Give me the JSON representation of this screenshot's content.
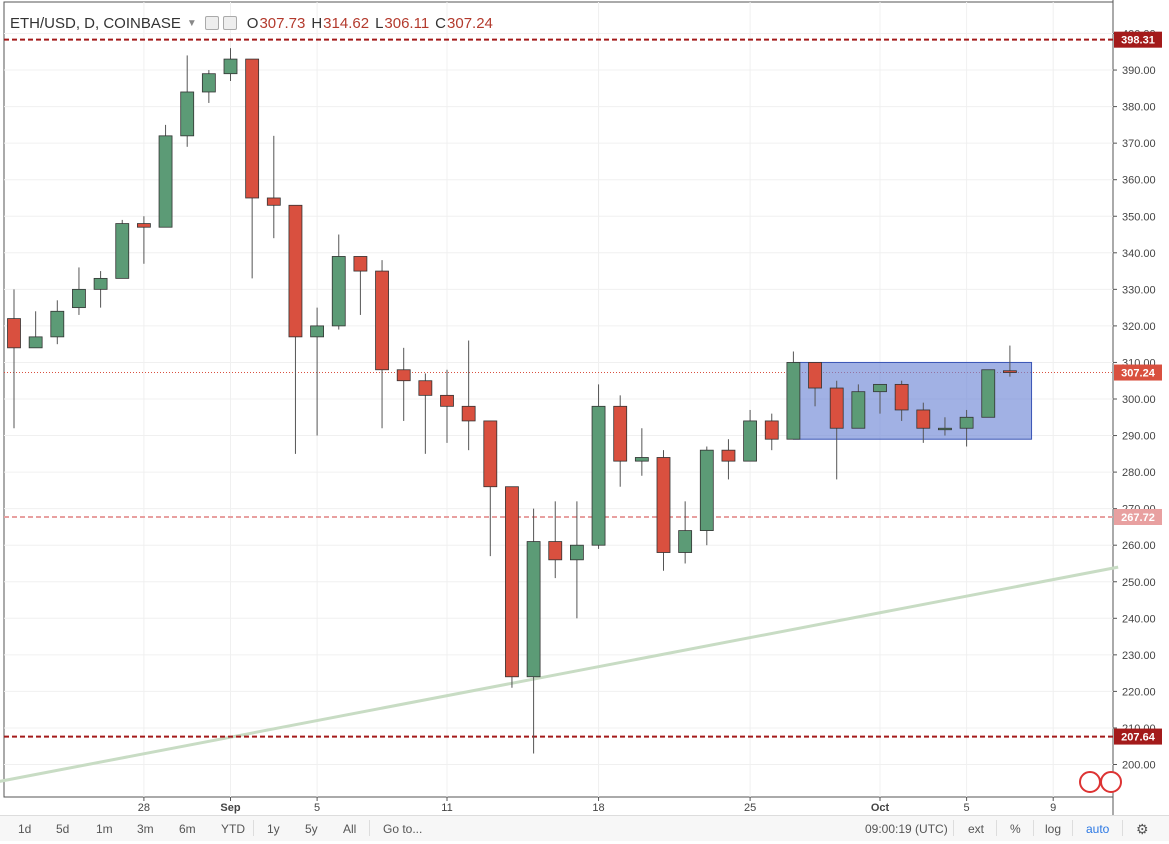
{
  "header": {
    "symbol": "ETH/USD, D, COINBASE",
    "o_label": "O",
    "o_value": "307.73",
    "h_label": "H",
    "h_value": "314.62",
    "l_label": "L",
    "l_value": "306.11",
    "c_label": "C",
    "c_value": "307.24"
  },
  "colors": {
    "up": "#5c9b76",
    "down": "#d9503f",
    "line_red": "#a31a1a",
    "trend": "#c8dcc4",
    "box": "#6f87d6"
  },
  "chart_data": {
    "type": "candlestick",
    "y_ticks": [
      200,
      210,
      220,
      230,
      240,
      250,
      260,
      270,
      280,
      290,
      300,
      310,
      320,
      330,
      340,
      350,
      360,
      370,
      380,
      390,
      400
    ],
    "y_tick_labels": [
      "200.00",
      "210.00",
      "220.00",
      "230.00",
      "240.00",
      "250.00",
      "260.00",
      "270.00",
      "280.00",
      "290.00",
      "300.00",
      "310.00",
      "320.00",
      "330.00",
      "340.00",
      "350.00",
      "360.00",
      "370.00",
      "380.00",
      "390.00",
      "400.00"
    ],
    "x_tick_labels": [
      {
        "label": "28",
        "date": "2017-08-28"
      },
      {
        "label": "Sep",
        "date": "2017-09-01"
      },
      {
        "label": "5",
        "date": "2017-09-05"
      },
      {
        "label": "11",
        "date": "2017-09-11"
      },
      {
        "label": "18",
        "date": "2017-09-18"
      },
      {
        "label": "25",
        "date": "2017-09-25"
      },
      {
        "label": "Oct",
        "date": "2017-10-01"
      },
      {
        "label": "5",
        "date": "2017-10-05"
      },
      {
        "label": "9",
        "date": "2017-10-09"
      }
    ],
    "candles": [
      {
        "date": "2017-08-22",
        "o": 322,
        "h": 330,
        "l": 292,
        "c": 314
      },
      {
        "date": "2017-08-23",
        "o": 314,
        "h": 324,
        "l": 314,
        "c": 317
      },
      {
        "date": "2017-08-24",
        "o": 317,
        "h": 327,
        "l": 315,
        "c": 324
      },
      {
        "date": "2017-08-25",
        "o": 325,
        "h": 336,
        "l": 323,
        "c": 330
      },
      {
        "date": "2017-08-26",
        "o": 330,
        "h": 335,
        "l": 325,
        "c": 333
      },
      {
        "date": "2017-08-27",
        "o": 333,
        "h": 349,
        "l": 333,
        "c": 348
      },
      {
        "date": "2017-08-28",
        "o": 348,
        "h": 350,
        "l": 337,
        "c": 347
      },
      {
        "date": "2017-08-29",
        "o": 347,
        "h": 375,
        "l": 347,
        "c": 372
      },
      {
        "date": "2017-08-30",
        "o": 372,
        "h": 394,
        "l": 369,
        "c": 384
      },
      {
        "date": "2017-08-31",
        "o": 384,
        "h": 390,
        "l": 381,
        "c": 389
      },
      {
        "date": "2017-09-01",
        "o": 389,
        "h": 396,
        "l": 387,
        "c": 393
      },
      {
        "date": "2017-09-02",
        "o": 393,
        "h": 393,
        "l": 333,
        "c": 355
      },
      {
        "date": "2017-09-03",
        "o": 355,
        "h": 372,
        "l": 344,
        "c": 353
      },
      {
        "date": "2017-09-04",
        "o": 353,
        "h": 353,
        "l": 285,
        "c": 317
      },
      {
        "date": "2017-09-05",
        "o": 317,
        "h": 325,
        "l": 290,
        "c": 320
      },
      {
        "date": "2017-09-06",
        "o": 320,
        "h": 345,
        "l": 319,
        "c": 339
      },
      {
        "date": "2017-09-07",
        "o": 339,
        "h": 339,
        "l": 323,
        "c": 335
      },
      {
        "date": "2017-09-08",
        "o": 335,
        "h": 338,
        "l": 292,
        "c": 308
      },
      {
        "date": "2017-09-09",
        "o": 308,
        "h": 314,
        "l": 294,
        "c": 305
      },
      {
        "date": "2017-09-10",
        "o": 305,
        "h": 307,
        "l": 285,
        "c": 301
      },
      {
        "date": "2017-09-11",
        "o": 301,
        "h": 308,
        "l": 288,
        "c": 298
      },
      {
        "date": "2017-09-12",
        "o": 298,
        "h": 316,
        "l": 286,
        "c": 294
      },
      {
        "date": "2017-09-13",
        "o": 294,
        "h": 294,
        "l": 257,
        "c": 276
      },
      {
        "date": "2017-09-14",
        "o": 276,
        "h": 276,
        "l": 221,
        "c": 224
      },
      {
        "date": "2017-09-15",
        "o": 224,
        "h": 270,
        "l": 203,
        "c": 261
      },
      {
        "date": "2017-09-16",
        "o": 261,
        "h": 272,
        "l": 251,
        "c": 256
      },
      {
        "date": "2017-09-17",
        "o": 256,
        "h": 272,
        "l": 240,
        "c": 260
      },
      {
        "date": "2017-09-18",
        "o": 260,
        "h": 304,
        "l": 259,
        "c": 298
      },
      {
        "date": "2017-09-19",
        "o": 298,
        "h": 301,
        "l": 276,
        "c": 283
      },
      {
        "date": "2017-09-20",
        "o": 283,
        "h": 292,
        "l": 279,
        "c": 284
      },
      {
        "date": "2017-09-21",
        "o": 284,
        "h": 286,
        "l": 253,
        "c": 258
      },
      {
        "date": "2017-09-22",
        "o": 258,
        "h": 272,
        "l": 255,
        "c": 264
      },
      {
        "date": "2017-09-23",
        "o": 264,
        "h": 287,
        "l": 260,
        "c": 286
      },
      {
        "date": "2017-09-24",
        "o": 286,
        "h": 289,
        "l": 278,
        "c": 283
      },
      {
        "date": "2017-09-25",
        "o": 283,
        "h": 297,
        "l": 283,
        "c": 294
      },
      {
        "date": "2017-09-26",
        "o": 294,
        "h": 296,
        "l": 286,
        "c": 289
      },
      {
        "date": "2017-09-27",
        "o": 289,
        "h": 313,
        "l": 289,
        "c": 310
      },
      {
        "date": "2017-09-28",
        "o": 310,
        "h": 310,
        "l": 298,
        "c": 303
      },
      {
        "date": "2017-09-29",
        "o": 303,
        "h": 305,
        "l": 278,
        "c": 292
      },
      {
        "date": "2017-09-30",
        "o": 292,
        "h": 304,
        "l": 292,
        "c": 302
      },
      {
        "date": "2017-10-01",
        "o": 302,
        "h": 304,
        "l": 296,
        "c": 304
      },
      {
        "date": "2017-10-02",
        "o": 304,
        "h": 305,
        "l": 294,
        "c": 297
      },
      {
        "date": "2017-10-03",
        "o": 297,
        "h": 299,
        "l": 288,
        "c": 292
      },
      {
        "date": "2017-10-04",
        "o": 292,
        "h": 295,
        "l": 290,
        "c": 292
      },
      {
        "date": "2017-10-05",
        "o": 292,
        "h": 297,
        "l": 287,
        "c": 295
      },
      {
        "date": "2017-10-06",
        "o": 295,
        "h": 308,
        "l": 295,
        "c": 308
      },
      {
        "date": "2017-10-07",
        "o": 307.73,
        "h": 314.62,
        "l": 306.11,
        "c": 307.24
      }
    ],
    "horizontal_lines": [
      {
        "value": 398.31,
        "label": "398.31",
        "style": "dashed",
        "color": "#a31a1a"
      },
      {
        "value": 307.24,
        "label": "307.24",
        "style": "dotted",
        "color": "#d9503f"
      },
      {
        "value": 267.72,
        "label": "267.72",
        "style": "dashed",
        "color": "#e8a0a0"
      },
      {
        "value": 207.64,
        "label": "207.64",
        "style": "dashed",
        "color": "#a31a1a"
      }
    ],
    "trendline": {
      "from": {
        "date": "2017-08-21",
        "value": 195
      },
      "to": {
        "date": "2017-10-12",
        "value": 254
      }
    },
    "rectangle": {
      "from": {
        "date": "2017-09-27",
        "value": 289
      },
      "to": {
        "date": "2017-10-08",
        "value": 310
      }
    },
    "grid": true
  },
  "toolbar": {
    "ranges": [
      "1d",
      "5d",
      "1m",
      "3m",
      "6m",
      "YTD",
      "1y",
      "5y",
      "All"
    ],
    "goto": "Go to...",
    "time": "09:00:19 (UTC)",
    "ext": "ext",
    "percent": "%",
    "log": "log",
    "auto": "auto"
  }
}
